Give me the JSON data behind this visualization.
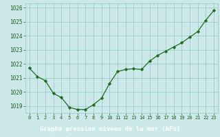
{
  "x": [
    0,
    1,
    2,
    3,
    4,
    5,
    6,
    7,
    8,
    9,
    10,
    11,
    12,
    13,
    14,
    15,
    16,
    17,
    18,
    19,
    20,
    21,
    22,
    23
  ],
  "y": [
    1021.7,
    1021.1,
    1020.8,
    1019.9,
    1019.6,
    1018.9,
    1018.75,
    1018.75,
    1019.1,
    1019.55,
    1020.6,
    1021.45,
    1021.6,
    1021.65,
    1021.6,
    1022.2,
    1022.6,
    1022.9,
    1023.2,
    1023.5,
    1023.9,
    1024.3,
    1025.1,
    1025.8
  ],
  "ylim": [
    1018.5,
    1026.3
  ],
  "yticks": [
    1019,
    1020,
    1021,
    1022,
    1023,
    1024,
    1025,
    1026
  ],
  "xlim": [
    -0.5,
    23.5
  ],
  "xticks": [
    0,
    1,
    2,
    3,
    4,
    5,
    6,
    7,
    8,
    9,
    10,
    11,
    12,
    13,
    14,
    15,
    16,
    17,
    18,
    19,
    20,
    21,
    22,
    23
  ],
  "line_color": "#1a6e1a",
  "marker": "D",
  "marker_size": 2.2,
  "bg_color": "#cce8e8",
  "grid_color": "#99cccc",
  "xlabel": "Graphe pression niveau de la mer (hPa)",
  "xlabel_bg": "#2e8b2e",
  "xlabel_text_color": "#ffffff",
  "tick_label_color": "#1a5c1a",
  "yticklabel_fontsize": 5.5,
  "xticklabel_fontsize": 5.0
}
